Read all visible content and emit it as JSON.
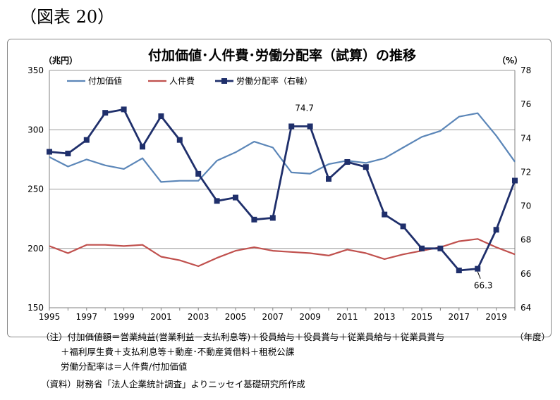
{
  "figure_label": "（図表 20）",
  "chart_data": {
    "type": "line",
    "title": "付加価値･人件費･労働分配率（試算）の推移",
    "left_unit": "（兆円）",
    "right_unit": "（%）",
    "x_unit": "（年度）",
    "x": [
      1995,
      1996,
      1997,
      1998,
      1999,
      2000,
      2001,
      2002,
      2003,
      2004,
      2005,
      2006,
      2007,
      2008,
      2009,
      2010,
      2011,
      2012,
      2013,
      2014,
      2015,
      2016,
      2017,
      2018,
      2019,
      2020
    ],
    "x_tick_labels": [
      "1995",
      "1997",
      "1999",
      "2001",
      "2003",
      "2005",
      "2007",
      "2009",
      "2011",
      "2013",
      "2015",
      "2017",
      "2019"
    ],
    "left_axis": {
      "range": [
        150,
        350
      ],
      "ticks": [
        "150",
        "200",
        "250",
        "300",
        "350"
      ]
    },
    "right_axis": {
      "range": [
        64,
        78
      ],
      "ticks": [
        "64",
        "66",
        "68",
        "70",
        "72",
        "74",
        "76",
        "78"
      ]
    },
    "grid": "horizontal",
    "legend_position": "top-left",
    "series": [
      {
        "name": "付加価値",
        "axis": "left",
        "color": "#5b86b8",
        "marker": false,
        "values": [
          277,
          269,
          275,
          270,
          267,
          276,
          256,
          257,
          257,
          274,
          281,
          290,
          285,
          264,
          263,
          271,
          274,
          272,
          276,
          285,
          294,
          299,
          311,
          314,
          295,
          273
        ]
      },
      {
        "name": "人件費",
        "axis": "left",
        "color": "#c0504d",
        "marker": false,
        "values": [
          202,
          196,
          203,
          203,
          202,
          203,
          193,
          190,
          185,
          192,
          198,
          201,
          198,
          197,
          196,
          194,
          199,
          196,
          191,
          195,
          198,
          201,
          206,
          208,
          201,
          195
        ]
      },
      {
        "name": "労働分配率（右軸）",
        "axis": "right",
        "color": "#1f2f6b",
        "marker": true,
        "values": [
          73.2,
          73.1,
          73.9,
          75.5,
          75.7,
          73.5,
          75.3,
          73.9,
          71.9,
          70.3,
          70.5,
          69.2,
          69.3,
          74.7,
          74.7,
          71.6,
          72.6,
          72.3,
          69.5,
          68.8,
          67.5,
          67.5,
          66.2,
          66.3,
          68.6,
          71.5
        ]
      }
    ],
    "annotations": [
      {
        "text": "74.7",
        "series": 2,
        "index": 14
      },
      {
        "text": "66.3",
        "series": 2,
        "index": 23
      }
    ]
  },
  "notes": {
    "line1": "（注）付加価値額＝営業純益(営業利益－支払利息等)＋役員給与＋役員賞与＋従業員給与＋従業員賞与",
    "line2": "＋福利厚生費＋支払利息等＋動産･不動産賃借料＋租税公課",
    "line3": "労働分配率は＝人件費/付加価値",
    "source": "（資料）財務省「法人企業統計調査」よりニッセイ基礎研究所作成"
  }
}
